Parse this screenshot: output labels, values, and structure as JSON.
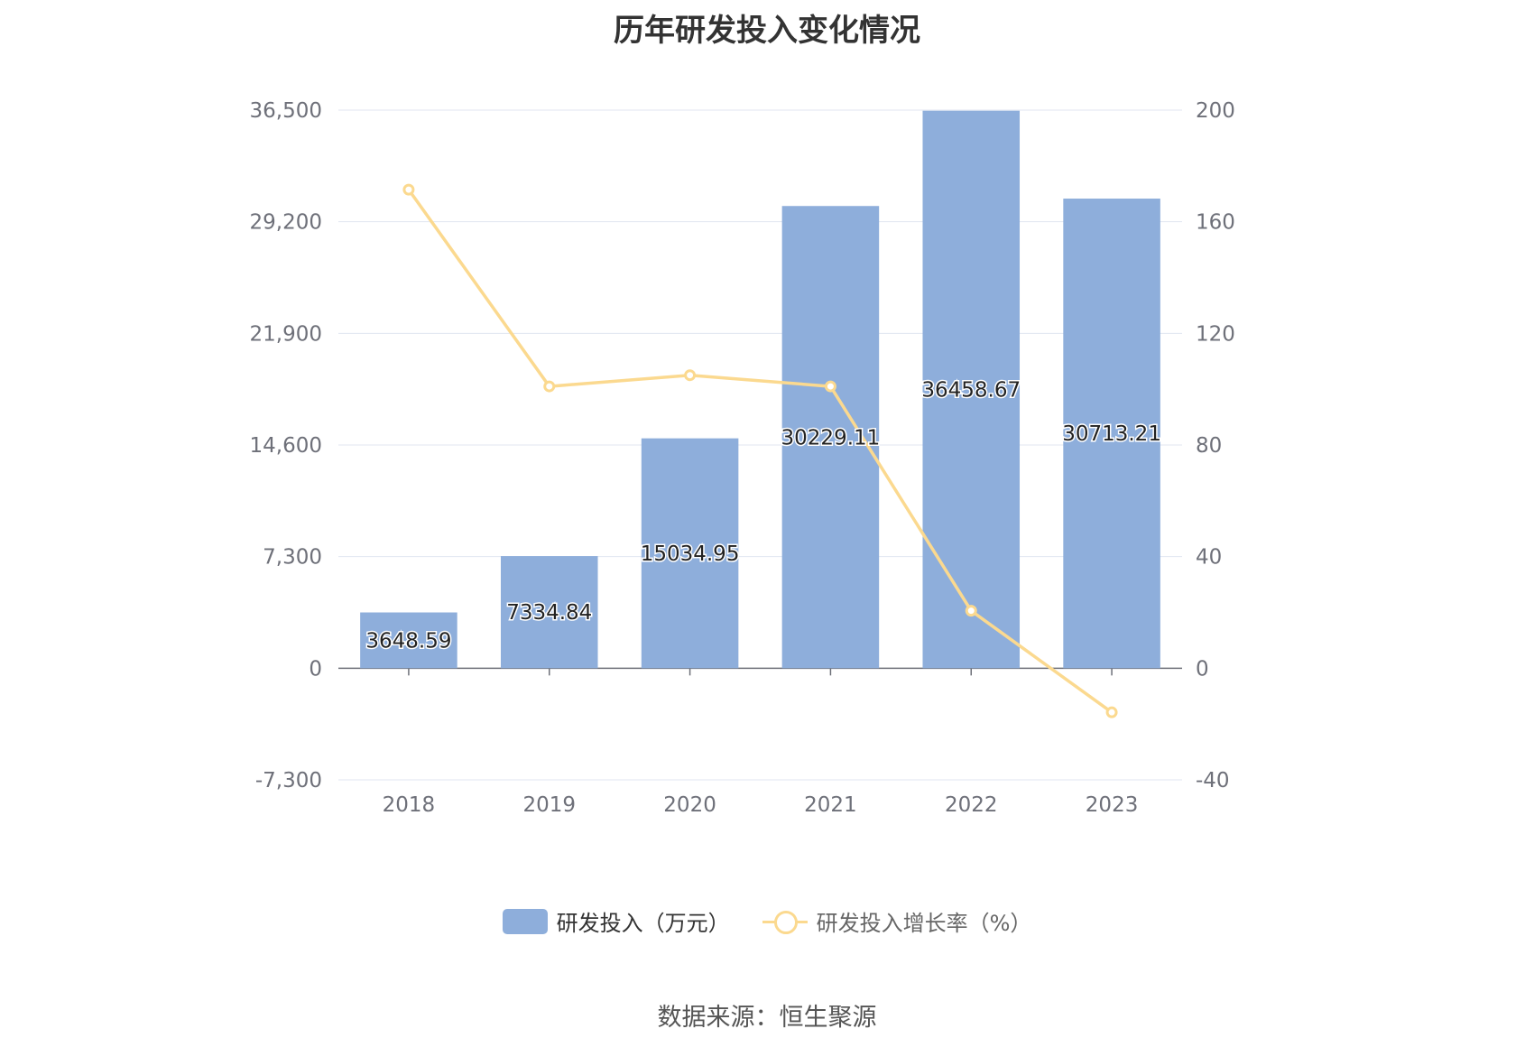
{
  "chart_data": {
    "type": "bar",
    "title": "历年研发投入变化情况",
    "categories": [
      "2018",
      "2019",
      "2020",
      "2021",
      "2022",
      "2023"
    ],
    "series": [
      {
        "name": "研发投入（万元）",
        "type": "bar",
        "axis": "left",
        "values": [
          3648.59,
          7334.84,
          15034.95,
          30229.11,
          36458.67,
          30713.21
        ],
        "labels": [
          "3648.59",
          "7334.84",
          "15034.95",
          "30229.11",
          "36458.67",
          "30713.21"
        ],
        "color": "#8eaedb"
      },
      {
        "name": "研发投入增长率（%）",
        "type": "line",
        "axis": "right",
        "values": [
          171.5,
          101.0,
          105.0,
          101.0,
          20.6,
          -15.8
        ],
        "color": "#fbd98f"
      }
    ],
    "y_left": {
      "ticks": [
        "36,500",
        "29,200",
        "21,900",
        "14,600",
        "7,300",
        "0",
        "-7,300"
      ],
      "min": -7300,
      "max": 36500
    },
    "y_right": {
      "ticks": [
        "200",
        "160",
        "120",
        "80",
        "40",
        "0",
        "-40"
      ],
      "min": -40,
      "max": 200
    },
    "grid": true,
    "legend_position": "bottom"
  },
  "source": "数据来源：恒生聚源"
}
